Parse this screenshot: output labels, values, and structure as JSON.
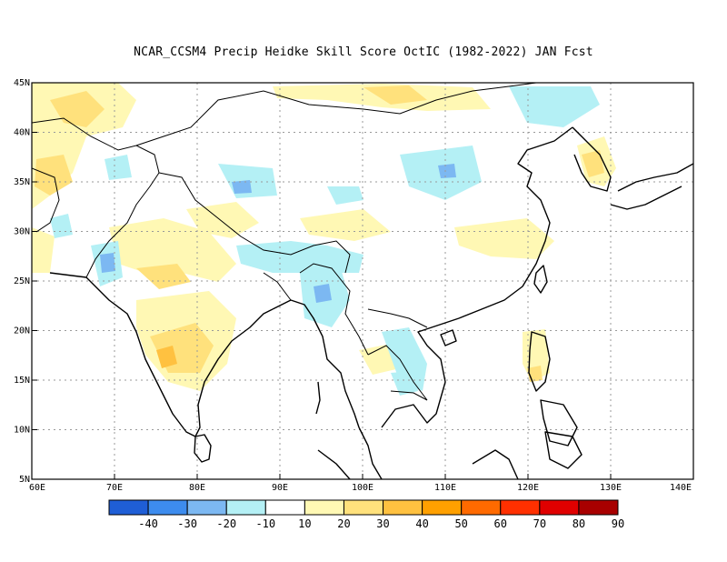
{
  "title": "NCAR_CCSM4 Precip Heidke Skill Score OctIC (1982-2022) JAN Fcst",
  "map": {
    "lon_range": [
      60,
      140
    ],
    "lat_range": [
      5,
      45
    ],
    "lon_ticks": [
      "60E",
      "70E",
      "80E",
      "90E",
      "100E",
      "110E",
      "120E",
      "130E",
      "140E"
    ],
    "lat_ticks": [
      "5N",
      "10N",
      "15N",
      "20N",
      "25N",
      "30N",
      "35N",
      "40N",
      "45N"
    ]
  },
  "colorbar": {
    "labels": [
      "-40",
      "-30",
      "-20",
      "-10",
      "10",
      "20",
      "30",
      "40",
      "50",
      "60",
      "70",
      "80",
      "90"
    ],
    "colors": [
      "#1f5ed6",
      "#3d8cee",
      "#7cb8f2",
      "#b4f0f5",
      "#ffffff",
      "#fff8b4",
      "#ffe17c",
      "#ffc140",
      "#ffa000",
      "#ff6a00",
      "#ff3000",
      "#e00000",
      "#a80000"
    ]
  },
  "styles": {
    "coast_color": "#000000",
    "grid_color": "#9a9a9a"
  }
}
